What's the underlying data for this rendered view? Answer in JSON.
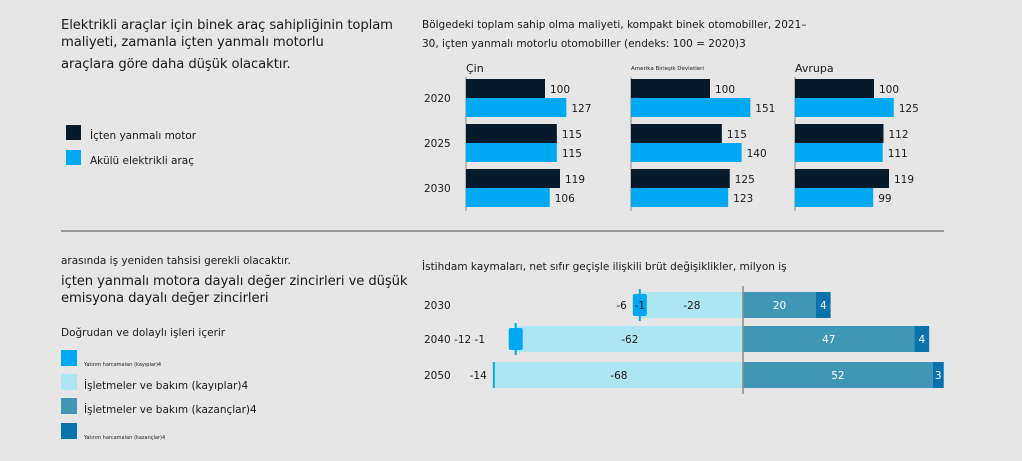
{
  "top": {
    "headline_lines": [
      "Elektrikli araçlar için binek araç sahipliğinin toplam",
      "maliyeti, zamanla içten yanmalı motorlu",
      "araçlara göre daha düşük olacaktır."
    ],
    "legend": [
      {
        "label": "İçten yanmalı motor",
        "color": "#061a2b"
      },
      {
        "label": "Akülü elektrikli araç",
        "color": "#00a9f4"
      }
    ],
    "chart_subtitle_lines": [
      "Bölgedeki toplam sahip olma maliyeti, kompakt binek otomobiller, 2021–",
      "30, içten yanmalı motorlu otomobiller (endeks: 100 = 2020)3"
    ]
  },
  "bottom": {
    "intro_line": "arasında iş yeniden tahsisi gerekli olacaktır.",
    "headline_lines": [
      "içten yanmalı motora dayalı değer zincirleri ve düşük",
      "emisyona dayalı değer zincirleri"
    ],
    "legend_title": "Doğrudan ve dolaylı işleri içerir",
    "legend": [
      {
        "label": "Yatırım harcamaları (kayıplar)4",
        "color": "#00a9f4",
        "size": "tiny"
      },
      {
        "label": "İşletmeler ve bakım (kayıplar)4",
        "color": "#aee5f2",
        "size": "normal"
      },
      {
        "label": "İşletmeler ve bakım (kazançlar)4",
        "color": "#3f97b5",
        "size": "normal"
      },
      {
        "label": "Yatırım harcamaları (kazançlar)4",
        "color": "#0a72ad",
        "size": "tiny"
      }
    ],
    "chart_subtitle": "İstihdam kaymaları, net sıfır geçişle ilişkili brüt değişiklikler, milyon iş"
  },
  "chart_data": [
    {
      "type": "bar",
      "orientation": "horizontal",
      "title": "Bölgedeki toplam sahip olma maliyeti, kompakt binek otomobiller, 2021–30, içten yanmalı motorlu otomobiller (endeks: 100 = 2020)3",
      "categories": [
        "2020",
        "2025",
        "2030"
      ],
      "panels": [
        {
          "name": "Çin",
          "series": [
            {
              "name": "İçten yanmalı motor",
              "color": "#061a2b",
              "values": [
                100,
                115,
                119
              ]
            },
            {
              "name": "Akülü elektrikli araç",
              "color": "#00a9f4",
              "values": [
                127,
                115,
                106
              ]
            }
          ]
        },
        {
          "name": "Amerika Birleşik Devletleri",
          "series": [
            {
              "name": "İçten yanmalı motor",
              "color": "#061a2b",
              "values": [
                100,
                115,
                125
              ]
            },
            {
              "name": "Akülü elektrikli araç",
              "color": "#00a9f4",
              "values": [
                151,
                140,
                123
              ]
            }
          ]
        },
        {
          "name": "Avrupa",
          "series": [
            {
              "name": "İçten yanmalı motor",
              "color": "#061a2b",
              "values": [
                100,
                112,
                119
              ]
            },
            {
              "name": "Akülü elektrikli araç",
              "color": "#00a9f4",
              "values": [
                125,
                111,
                99
              ]
            }
          ]
        }
      ],
      "xlim": [
        0,
        160
      ],
      "grid": false,
      "legend": "left"
    },
    {
      "type": "bar",
      "orientation": "horizontal",
      "stacked": "diverging",
      "title": "İstihdam kaymaları, net sıfır geçişle ilişkili brüt değişiklikler, milyon iş",
      "categories": [
        "2030",
        "2040",
        "2050"
      ],
      "category_labels": [
        "2030",
        "2040 -12 -1",
        "2050"
      ],
      "series": [
        {
          "name": "Yatırım harcamaları (kayıplar)4",
          "color": "#00a9f4",
          "values": [
            -1,
            -1,
            0
          ]
        },
        {
          "name": "İşletmeler ve bakım (kayıplar)4",
          "color": "#aee5f2",
          "values": [
            -28,
            -62,
            -68
          ]
        },
        {
          "name": "İşletmeler ve bakım (kazançlar)4",
          "color": "#3f97b5",
          "values": [
            20,
            47,
            52
          ]
        },
        {
          "name": "Yatırım harcamaları (kazançlar)4",
          "color": "#0a72ad",
          "values": [
            4,
            4,
            3
          ]
        }
      ],
      "total_losses": [
        -6,
        -12,
        -14
      ],
      "bar_labels": [
        {
          "loss_total": "-6",
          "invest_loss": "-1",
          "om_loss": "-28",
          "om_gain": "20",
          "invest_gain": "4"
        },
        {
          "loss_total": "",
          "invest_loss": "",
          "om_loss": "-62",
          "om_gain": "47",
          "invest_gain": "4"
        },
        {
          "loss_total": "-14",
          "invest_loss": "",
          "om_loss": "-68",
          "om_gain": "52",
          "invest_gain": "3"
        }
      ],
      "xlim": [
        -70,
        60
      ],
      "grid": false,
      "legend": "left"
    }
  ]
}
